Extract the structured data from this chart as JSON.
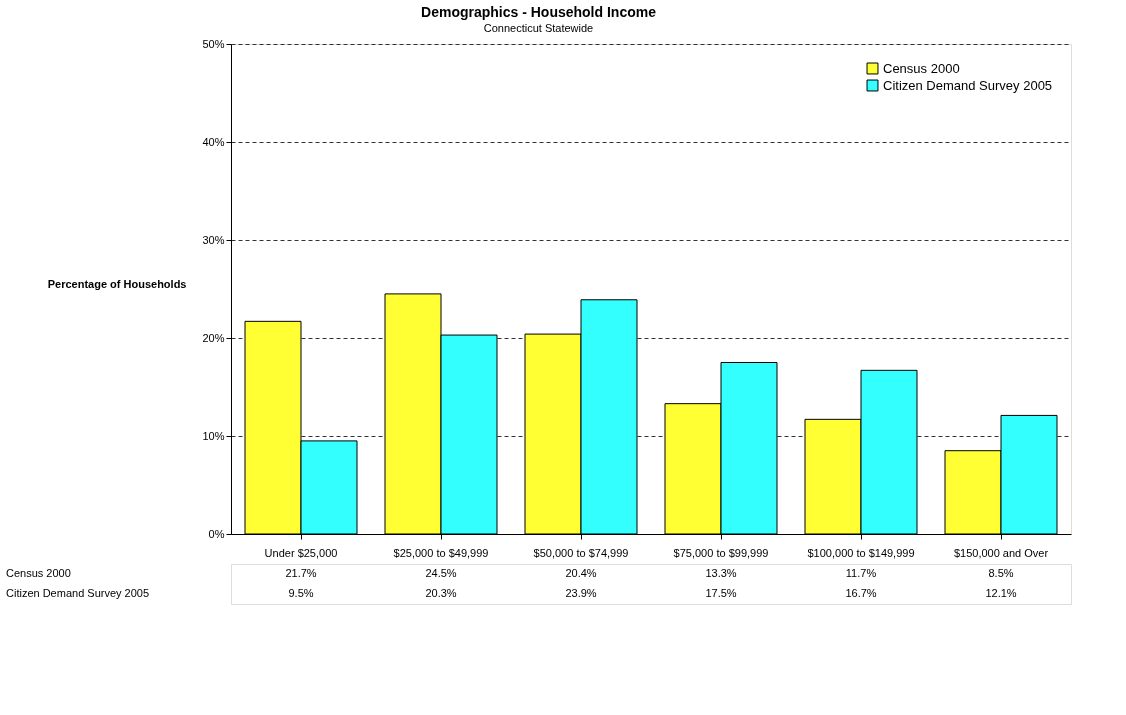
{
  "chart_data": {
    "type": "bar",
    "title": "Demographics - Household Income",
    "subtitle": "Connecticut Statewide",
    "ylabel": "Percentage of Households",
    "categories": [
      "Under $25,000",
      "$25,000 to $49,999",
      "$50,000 to $74,999",
      "$75,000 to $99,999",
      "$100,000 to $149,999",
      "$150,000 and Over"
    ],
    "series": [
      {
        "name": "Census 2000",
        "color": "#ffff33",
        "values": [
          21.7,
          24.5,
          20.4,
          13.3,
          11.7,
          8.5
        ],
        "value_labels": [
          "21.7%",
          "24.5%",
          "20.4%",
          "13.3%",
          "11.7%",
          "8.5%"
        ]
      },
      {
        "name": "Citizen Demand Survey 2005",
        "color": "#33ffff",
        "values": [
          9.5,
          20.3,
          23.9,
          17.5,
          16.7,
          12.1
        ],
        "value_labels": [
          "9.5%",
          "20.3%",
          "23.9%",
          "17.5%",
          "16.7%",
          "12.1%"
        ]
      }
    ],
    "ylim": [
      0,
      50
    ],
    "yticks": [
      {
        "value": 0,
        "label": "0%"
      },
      {
        "value": 10,
        "label": "10%"
      },
      {
        "value": 20,
        "label": "20%"
      },
      {
        "value": 30,
        "label": "30%"
      },
      {
        "value": 40,
        "label": "40%"
      },
      {
        "value": 50,
        "label": "50%"
      }
    ],
    "grid": "y",
    "legend": "top right"
  }
}
